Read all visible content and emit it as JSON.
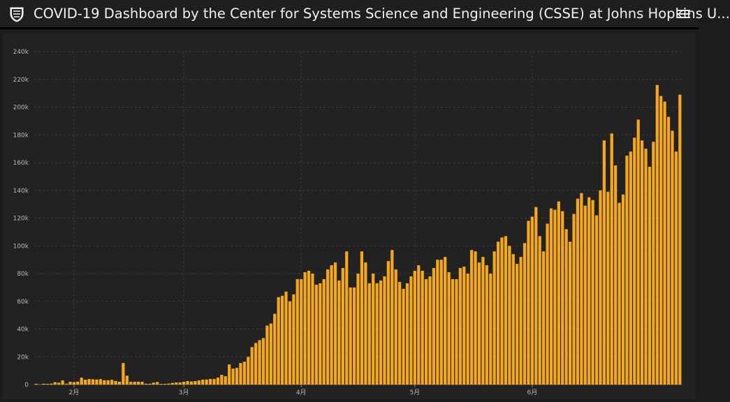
{
  "header": {
    "title": "COVID-19 Dashboard by the Center for Systems Science and Engineering (CSSE) at Johns Hopkins U...",
    "logo_icon": "jhu-shield-icon",
    "menu_icon": "hamburger-menu-icon"
  },
  "colors": {
    "bar": "#f5a81c",
    "background": "#222222",
    "grid": "#3a3a3a",
    "text": "#b8b8b8"
  },
  "chart_data": {
    "type": "bar",
    "ylim": [
      0,
      240000
    ],
    "yticks": [
      0,
      20000,
      40000,
      60000,
      80000,
      100000,
      120000,
      140000,
      160000,
      180000,
      200000,
      220000,
      240000
    ],
    "ytick_labels": [
      "0",
      "20k",
      "40k",
      "60k",
      "80k",
      "100k",
      "120k",
      "140k",
      "160k",
      "180k",
      "200k",
      "220k",
      "240k"
    ],
    "xtick_labels": [
      "2月",
      "3月",
      "4月",
      "5月",
      "6月"
    ],
    "xtick_dates": [
      "2020-02-01",
      "2020-03-01",
      "2020-04-01",
      "2020-05-01",
      "2020-06-01"
    ],
    "grid": true,
    "legend": "none",
    "x_start": "2020-01-22",
    "values": [
      550,
      100,
      600,
      500,
      700,
      1700,
      1300,
      3000,
      600,
      2000,
      1800,
      2100,
      5000,
      3500,
      4000,
      3800,
      3600,
      3900,
      3100,
      3100,
      3400,
      2600,
      2000,
      15500,
      6400,
      2000,
      2000,
      2000,
      2000,
      600,
      600,
      1400,
      1800,
      500,
      500,
      700,
      1200,
      1500,
      1500,
      2000,
      2500,
      2200,
      2500,
      3000,
      3500,
      3600,
      4000,
      4000,
      5000,
      7000,
      6000,
      14500,
      11500,
      12000,
      15500,
      16500,
      20000,
      27000,
      30000,
      32000,
      33500,
      42500,
      44000,
      51000,
      63000,
      64000,
      67000,
      60000,
      65000,
      76000,
      76000,
      81000,
      82000,
      80000,
      72000,
      73000,
      76000,
      83000,
      86000,
      88000,
      75000,
      84000,
      96000,
      70000,
      70000,
      80000,
      96000,
      88000,
      73000,
      80000,
      73000,
      75000,
      78000,
      89000,
      97000,
      83000,
      74000,
      69000,
      73000,
      78000,
      82000,
      86000,
      82000,
      76000,
      78000,
      84000,
      90000,
      90000,
      92000,
      81000,
      76000,
      76000,
      84000,
      85000,
      80000,
      97000,
      96000,
      88000,
      92000,
      86000,
      80000,
      96000,
      103000,
      106000,
      107000,
      100000,
      94000,
      87000,
      92000,
      102000,
      118000,
      121000,
      128000,
      107000,
      96000,
      116000,
      127000,
      126000,
      132000,
      125000,
      112000,
      103000,
      123000,
      134000,
      138000,
      129000,
      135000,
      133000,
      122000,
      140000,
      176000,
      139000,
      181000,
      158000,
      131000,
      137000,
      165000,
      168000,
      178000,
      191000,
      176000,
      170000,
      157000,
      175000,
      216000,
      208000,
      204000,
      193000,
      183000,
      168000,
      209000
    ]
  }
}
